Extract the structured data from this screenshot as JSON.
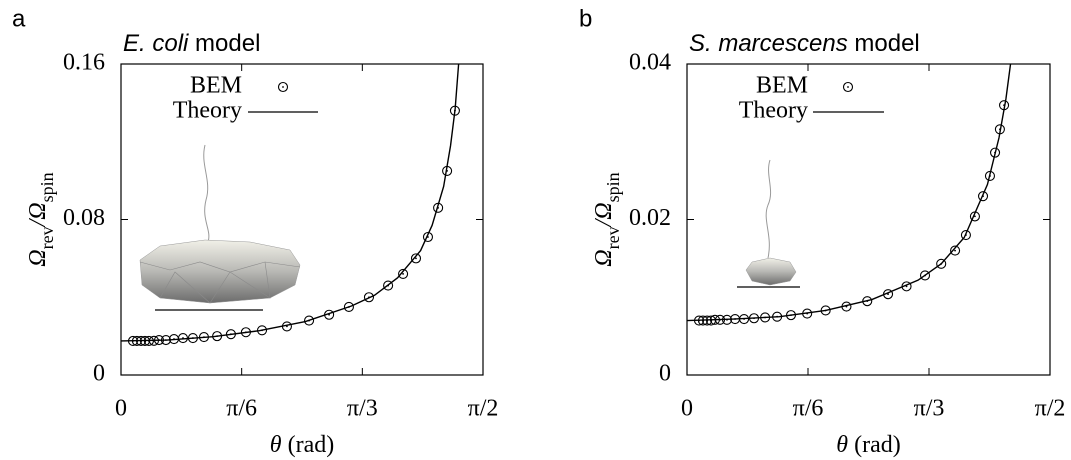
{
  "chart_data": [
    {
      "type": "line",
      "panel_label": "a",
      "title": {
        "organism": "E. coli",
        "suffix": "model"
      },
      "xlabel": [
        "θ",
        "(rad)"
      ],
      "ylabel": [
        {
          "text": "Ω"
        },
        {
          "text": "rev",
          "sub": true
        },
        {
          "text": "/Ω"
        },
        {
          "text": "spin",
          "sub": true
        }
      ],
      "xlim": [
        0,
        1.5708
      ],
      "ylim": [
        0,
        0.16
      ],
      "xticks": [
        0,
        {
          "value": 0.5236,
          "label": "π/6"
        },
        {
          "value": 1.0472,
          "label": "π/3"
        },
        {
          "value": 1.5708,
          "label": "π/2"
        }
      ],
      "yticks": [
        0,
        0.08,
        0.16
      ],
      "series": [
        {
          "name": "BEM",
          "color": "#000000",
          "marker": "circle",
          "x": [
            0.052,
            0.069,
            0.087,
            0.104,
            0.121,
            0.143,
            0.165,
            0.195,
            0.23,
            0.269,
            0.312,
            0.36,
            0.417,
            0.477,
            0.542,
            0.612,
            0.72,
            0.816,
            0.903,
            0.989,
            1.076,
            1.159,
            1.224,
            1.28,
            1.332,
            1.376,
            1.415,
            1.449
          ],
          "values": [
            0.0175,
            0.0175,
            0.0175,
            0.0175,
            0.0175,
            0.0176,
            0.018,
            0.018,
            0.0185,
            0.019,
            0.019,
            0.0195,
            0.02,
            0.021,
            0.022,
            0.023,
            0.025,
            0.028,
            0.031,
            0.035,
            0.04,
            0.046,
            0.052,
            0.06,
            0.071,
            0.086,
            0.105,
            0.136
          ]
        },
        {
          "name": "Theory",
          "color": "#000000",
          "marker": "none",
          "x": [
            0,
            0.2,
            0.4,
            0.6,
            0.8,
            1.0,
            1.1,
            1.2,
            1.3,
            1.35,
            1.4,
            1.43,
            1.45,
            1.465
          ],
          "values": [
            0.0175,
            0.018,
            0.0197,
            0.0228,
            0.0275,
            0.0355,
            0.041,
            0.05,
            0.064,
            0.077,
            0.097,
            0.118,
            0.137,
            0.16
          ]
        }
      ]
    },
    {
      "type": "line",
      "panel_label": "b",
      "title": {
        "organism": "S. marcescens",
        "suffix": "model"
      },
      "xlabel": [
        "θ",
        "(rad)"
      ],
      "ylabel": [
        {
          "text": "Ω"
        },
        {
          "text": "rev",
          "sub": true
        },
        {
          "text": "/Ω"
        },
        {
          "text": "spin",
          "sub": true
        }
      ],
      "xlim": [
        0,
        1.5708
      ],
      "ylim": [
        0,
        0.04
      ],
      "xticks": [
        0,
        {
          "value": 0.5236,
          "label": "π/6"
        },
        {
          "value": 1.0472,
          "label": "π/3"
        },
        {
          "value": 1.5708,
          "label": "π/2"
        }
      ],
      "yticks": [
        0,
        0.02,
        0.04
      ],
      "series": [
        {
          "name": "BEM",
          "color": "#000000",
          "marker": "circle",
          "x": [
            0.052,
            0.069,
            0.087,
            0.104,
            0.121,
            0.143,
            0.173,
            0.208,
            0.247,
            0.29,
            0.338,
            0.39,
            0.45,
            0.52,
            0.6,
            0.69,
            0.78,
            0.87,
            0.95,
            1.03,
            1.1,
            1.16,
            1.207,
            1.246,
            1.281,
            1.311,
            1.333,
            1.354,
            1.372
          ],
          "values": [
            0.007,
            0.007,
            0.007,
            0.007,
            0.0071,
            0.0071,
            0.0071,
            0.0072,
            0.0072,
            0.0073,
            0.0074,
            0.0075,
            0.0077,
            0.0079,
            0.0083,
            0.0088,
            0.0095,
            0.0104,
            0.0114,
            0.0128,
            0.0143,
            0.016,
            0.018,
            0.0204,
            0.023,
            0.0256,
            0.0286,
            0.0316,
            0.0347
          ]
        },
        {
          "name": "Theory",
          "color": "#000000",
          "marker": "none",
          "x": [
            0,
            0.2,
            0.4,
            0.6,
            0.8,
            1.0,
            1.1,
            1.2,
            1.3,
            1.35,
            1.38,
            1.4
          ],
          "values": [
            0.007,
            0.0072,
            0.0075,
            0.0083,
            0.0097,
            0.0122,
            0.0143,
            0.0177,
            0.0245,
            0.0305,
            0.0355,
            0.04
          ]
        }
      ]
    }
  ]
}
